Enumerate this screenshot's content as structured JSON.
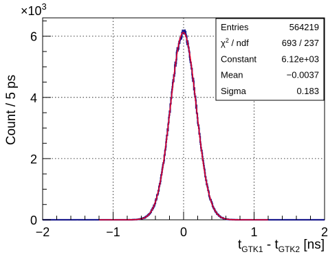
{
  "chart_data": {
    "type": "histogram",
    "xlabel": {
      "base": "t",
      "sub1": "GTK1",
      "mid": " - t",
      "sub2": "GTK2",
      "unit": " [ns]"
    },
    "ylabel": "Count / 5 ps",
    "y_multiplier": "×10",
    "y_multiplier_exp": "3",
    "xlim": [
      -2,
      2
    ],
    "ylim": [
      0,
      6.6
    ],
    "y_scale": 1000,
    "x_ticks": [
      -2,
      -1,
      0,
      1,
      2
    ],
    "x_tick_labels": [
      "−2",
      "−1",
      "0",
      "1",
      "2"
    ],
    "y_ticks": [
      0,
      2,
      4,
      6
    ],
    "y_tick_labels": [
      "0",
      "2",
      "4",
      "6"
    ],
    "grid": true,
    "bin_width_ns": 0.005,
    "series": [
      {
        "name": "data",
        "style": "histogram",
        "color": "#1a1a8c"
      },
      {
        "name": "fit",
        "style": "gaussian",
        "color": "#e0002a"
      }
    ],
    "fit": {
      "constant": 6120,
      "mean": -0.0037,
      "sigma": 0.183
    },
    "stats_box": {
      "placement": "top-right",
      "rows": [
        {
          "label": "Entries",
          "value": "564219"
        },
        {
          "label": "χ² / ndf",
          "label_base": "χ",
          "label_sup": "2",
          "label_rest": " / ndf",
          "value": "693 / 237"
        },
        {
          "label": "Constant",
          "value": "6.12e+03"
        },
        {
          "label": "Mean",
          "value": "−0.0037"
        },
        {
          "label": "Sigma",
          "value": "0.183"
        }
      ]
    }
  }
}
